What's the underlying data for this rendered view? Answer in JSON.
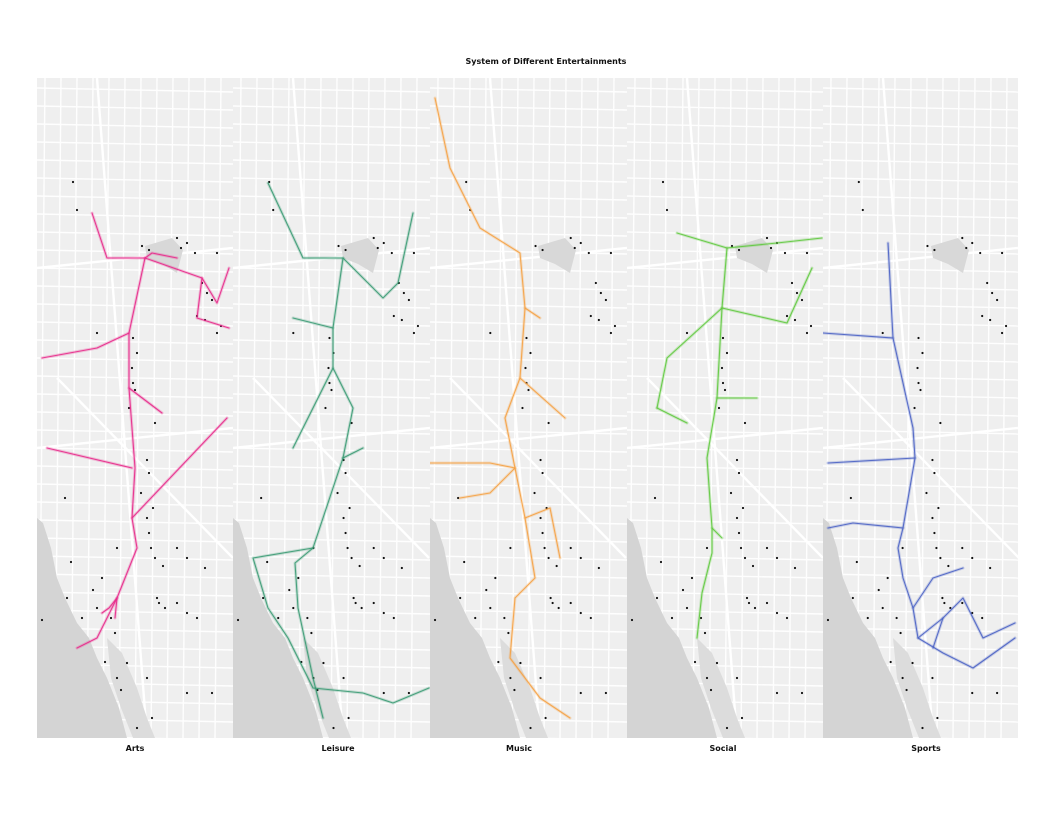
{
  "title": "System of Different Entertainments",
  "panels": [
    {
      "label": "Arts",
      "color": "#e7298a"
    },
    {
      "label": "Leisure",
      "color": "#3a9a73"
    },
    {
      "label": "Music",
      "color": "#f5a142"
    },
    {
      "label": "Social",
      "color": "#5fc93e"
    },
    {
      "label": "Sports",
      "color": "#4a62c4"
    }
  ]
}
